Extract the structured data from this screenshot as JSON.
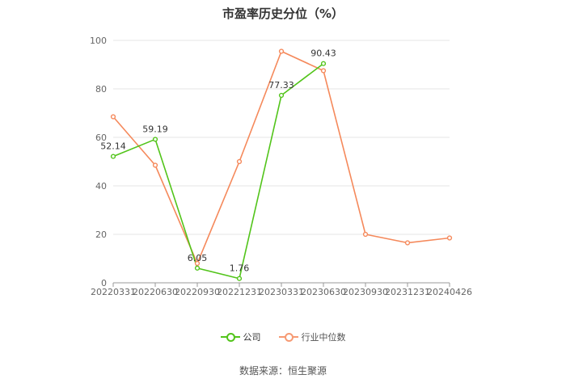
{
  "chart_data": {
    "type": "line",
    "title": "市盈率历史分位（%）",
    "categories": [
      "20220331",
      "20220630",
      "20220930",
      "20221231",
      "20230331",
      "20230630",
      "20230930",
      "20231231",
      "20240426"
    ],
    "ylim": [
      0,
      100
    ],
    "yticks": [
      0,
      20,
      40,
      60,
      80,
      100
    ],
    "grid": true,
    "legend_position": "bottom",
    "series": [
      {
        "name": "公司",
        "color": "#52c41a",
        "values": [
          52.14,
          59.19,
          6.05,
          1.76,
          77.33,
          90.43,
          null,
          null,
          null
        ],
        "labels": [
          "52.14",
          "59.19",
          "6.05",
          "1.76",
          "77.33",
          "90.43",
          null,
          null,
          null
        ]
      },
      {
        "name": "行业中位数",
        "color": "#f5895b",
        "values": [
          68.5,
          48.5,
          8.0,
          50.0,
          95.5,
          87.5,
          20.0,
          16.5,
          18.5
        ]
      }
    ]
  },
  "source_text": "数据来源：恒生聚源"
}
